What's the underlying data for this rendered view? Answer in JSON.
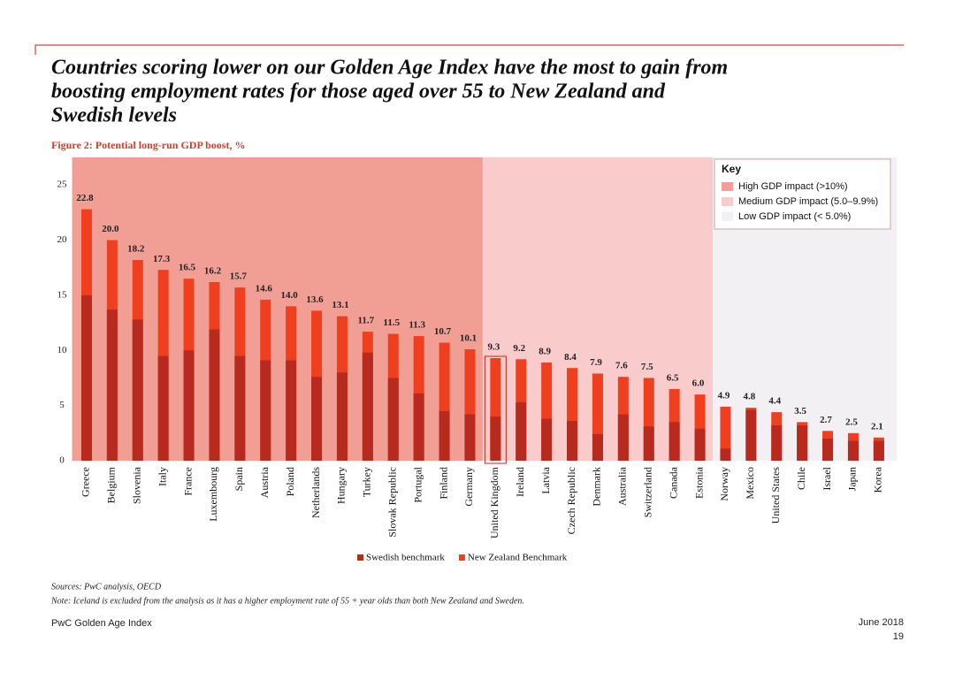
{
  "chart_data": {
    "type": "bar",
    "title": [
      "Countries scoring lower on our Golden Age Index have the most to gain from",
      "boosting employment rates for those aged over 55 to New Zealand and",
      "Swedish levels"
    ],
    "subtitle": "Figure 2: Potential long-run GDP boost, %",
    "categories": [
      "Greece",
      "Belgium",
      "Slovenia",
      "Italy",
      "France",
      "Luxembourg",
      "Spain",
      "Austria",
      "Poland",
      "Netherlands",
      "Hungary",
      "Turkey",
      "Slovak Republic",
      "Portugal",
      "Finland",
      "Germany",
      "United Kingdom",
      "Ireland",
      "Latvia",
      "Czech Republic",
      "Denmark",
      "Australia",
      "Switzerland",
      "Canada",
      "Estonia",
      "Norway",
      "Mexico",
      "United States",
      "Chile",
      "Israel",
      "Japan",
      "Korea"
    ],
    "series": [
      {
        "name": "New Zealand Benchmark",
        "color": "#f03f1e",
        "values": [
          22.8,
          20.0,
          18.2,
          17.3,
          16.5,
          16.2,
          15.7,
          14.6,
          14.0,
          13.6,
          13.1,
          11.7,
          11.5,
          11.3,
          10.7,
          10.1,
          9.3,
          9.2,
          8.9,
          8.4,
          7.9,
          7.6,
          7.5,
          6.5,
          6.0,
          4.9,
          4.8,
          4.4,
          3.5,
          2.7,
          2.5,
          2.1
        ],
        "value_labels": [
          "22.8",
          "20.0",
          "18.2",
          "17.3",
          "16.5",
          "16.2",
          "15.7",
          "14.6",
          "14.0",
          "13.6",
          "13.1",
          "11.7",
          "11.5",
          "11.3",
          "10.7",
          "10.1",
          "9.3",
          "9.2",
          "8.9",
          "8.4",
          "7.9",
          "7.6",
          "7.5",
          "6.5",
          "6.0",
          "4.9",
          "4.8",
          "4.4",
          "3.5",
          "2.7",
          "2.5",
          "2.1"
        ]
      },
      {
        "name": "Swedish benchmark",
        "color": "#b8291e",
        "values": [
          15.0,
          13.7,
          12.8,
          9.5,
          10.0,
          11.9,
          9.5,
          9.1,
          9.1,
          7.6,
          8.0,
          9.8,
          7.5,
          6.1,
          4.5,
          4.2,
          4.0,
          5.3,
          3.8,
          3.6,
          2.4,
          4.2,
          3.1,
          3.5,
          2.9,
          1.1,
          4.6,
          3.2,
          3.2,
          2.0,
          1.8,
          1.8
        ]
      }
    ],
    "ylim": [
      0,
      27.5
    ],
    "yticks": [
      0,
      5,
      10,
      15,
      20,
      25
    ],
    "key_title": "Key",
    "zones": [
      {
        "label": "High GDP impact (>10%)",
        "color": "#f19f95",
        "first": "Greece",
        "last": "Germany"
      },
      {
        "label": "Medium GDP impact (5.0–9.9%)",
        "color": "#f9cbcb",
        "first": "United Kingdom",
        "last": "Estonia"
      },
      {
        "label": "Low GDP impact (< 5.0%)",
        "color": "#f3f0f4",
        "first": "Norway",
        "last": "Korea"
      }
    ],
    "highlight": "United Kingdom",
    "legend_order": [
      1,
      0
    ]
  },
  "sources": "Sources: PwC analysis, OECD",
  "note": "Note: Iceland is excluded from the analysis as it has a higher employment rate of 55 + year olds than both New Zealand and Sweden.",
  "footer": {
    "left": "PwC Golden Age Index",
    "date": "June 2018",
    "page": "19"
  }
}
